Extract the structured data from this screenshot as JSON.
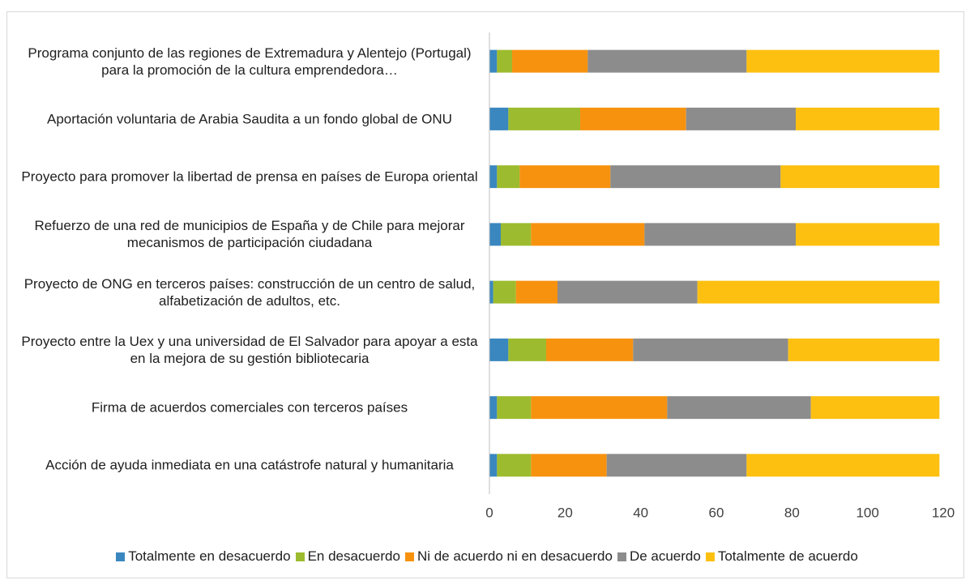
{
  "chart_data": {
    "type": "stacked_barh",
    "categories": [
      "Programa conjunto de las regiones de Extremadura y Alentejo (Portugal) para la promoción de la cultura emprendedora…",
      "Aportación voluntaria de Arabia Saudita a un fondo global de ONU",
      "Proyecto para promover la libertad de prensa en países de Europa oriental",
      "Refuerzo de una red de municipios de España y de Chile para mejorar mecanismos de participación ciudadana",
      "Proyecto de ONG en terceros países: construcción de un centro de salud, alfabetización de adultos, etc.",
      "Proyecto entre la Uex y una universidad de El Salvador para apoyar a esta en la mejora de su gestión bibliotecaria",
      "Firma de acuerdos comerciales con terceros países",
      "Acción de ayuda inmediata en una catástrofe natural y humanitaria"
    ],
    "series": [
      {
        "name": "Totalmente en desacuerdo",
        "color": "#3a87bf",
        "values": [
          2,
          5,
          2,
          3,
          1,
          5,
          2,
          2
        ]
      },
      {
        "name": "En desacuerdo",
        "color": "#9dbb2e",
        "values": [
          4,
          19,
          6,
          8,
          6,
          10,
          9,
          9
        ]
      },
      {
        "name": "Ni de acuerdo ni en desacuerdo",
        "color": "#f7920f",
        "values": [
          20,
          28,
          24,
          30,
          11,
          23,
          36,
          20
        ]
      },
      {
        "name": "De acuerdo",
        "color": "#8c8c8c",
        "values": [
          42,
          29,
          45,
          40,
          37,
          41,
          38,
          37
        ]
      },
      {
        "name": "Totalmente de acuerdo",
        "color": "#fdc010",
        "values": [
          51,
          38,
          42,
          38,
          64,
          40,
          34,
          51
        ]
      }
    ],
    "xlim": [
      0,
      120
    ],
    "xticks": [
      0,
      20,
      40,
      60,
      80,
      100,
      120
    ],
    "grid": false,
    "legend": "bottom"
  }
}
